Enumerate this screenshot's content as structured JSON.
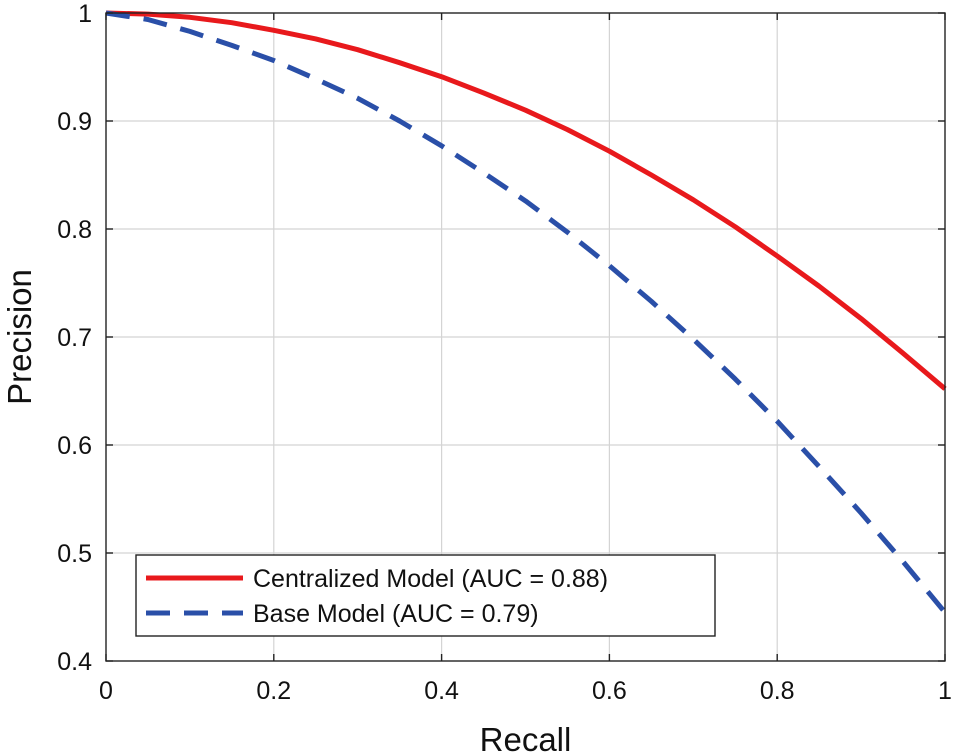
{
  "chart_data": {
    "type": "line",
    "title": "",
    "xlabel": "Recall",
    "ylabel": "Precision",
    "xlim": [
      0,
      1
    ],
    "ylim": [
      0.4,
      1
    ],
    "xticks": [
      0,
      0.2,
      0.4,
      0.6,
      0.8,
      1
    ],
    "xtick_labels": [
      "0",
      "0.2",
      "0.4",
      "0.6",
      "0.8",
      "1"
    ],
    "yticks": [
      0.4,
      0.5,
      0.6,
      0.7,
      0.8,
      0.9,
      1
    ],
    "ytick_labels": [
      "0.4",
      "0.5",
      "0.6",
      "0.7",
      "0.8",
      "0.9",
      "1"
    ],
    "grid": true,
    "legend_position": "bottom-left",
    "series": [
      {
        "name": "Centralized Model (AUC = 0.88)",
        "color": "#e8191c",
        "style": "solid",
        "x": [
          0,
          0.05,
          0.1,
          0.15,
          0.2,
          0.25,
          0.3,
          0.35,
          0.4,
          0.45,
          0.5,
          0.55,
          0.6,
          0.65,
          0.7,
          0.75,
          0.8,
          0.85,
          0.9,
          0.95,
          1
        ],
        "y": [
          1.0,
          0.999,
          0.996,
          0.991,
          0.984,
          0.976,
          0.966,
          0.954,
          0.941,
          0.926,
          0.91,
          0.892,
          0.872,
          0.85,
          0.827,
          0.802,
          0.775,
          0.747,
          0.717,
          0.685,
          0.652
        ]
      },
      {
        "name": "Base Model (AUC = 0.79)",
        "color": "#2a4fa8",
        "style": "dashed",
        "x": [
          0,
          0.05,
          0.1,
          0.15,
          0.2,
          0.25,
          0.3,
          0.35,
          0.4,
          0.45,
          0.5,
          0.55,
          0.6,
          0.65,
          0.7,
          0.75,
          0.8,
          0.85,
          0.9,
          0.95,
          1
        ],
        "y": [
          1.0,
          0.994,
          0.983,
          0.97,
          0.956,
          0.939,
          0.921,
          0.9,
          0.877,
          0.852,
          0.826,
          0.797,
          0.766,
          0.733,
          0.698,
          0.661,
          0.622,
          0.58,
          0.537,
          0.492,
          0.445
        ]
      }
    ]
  }
}
